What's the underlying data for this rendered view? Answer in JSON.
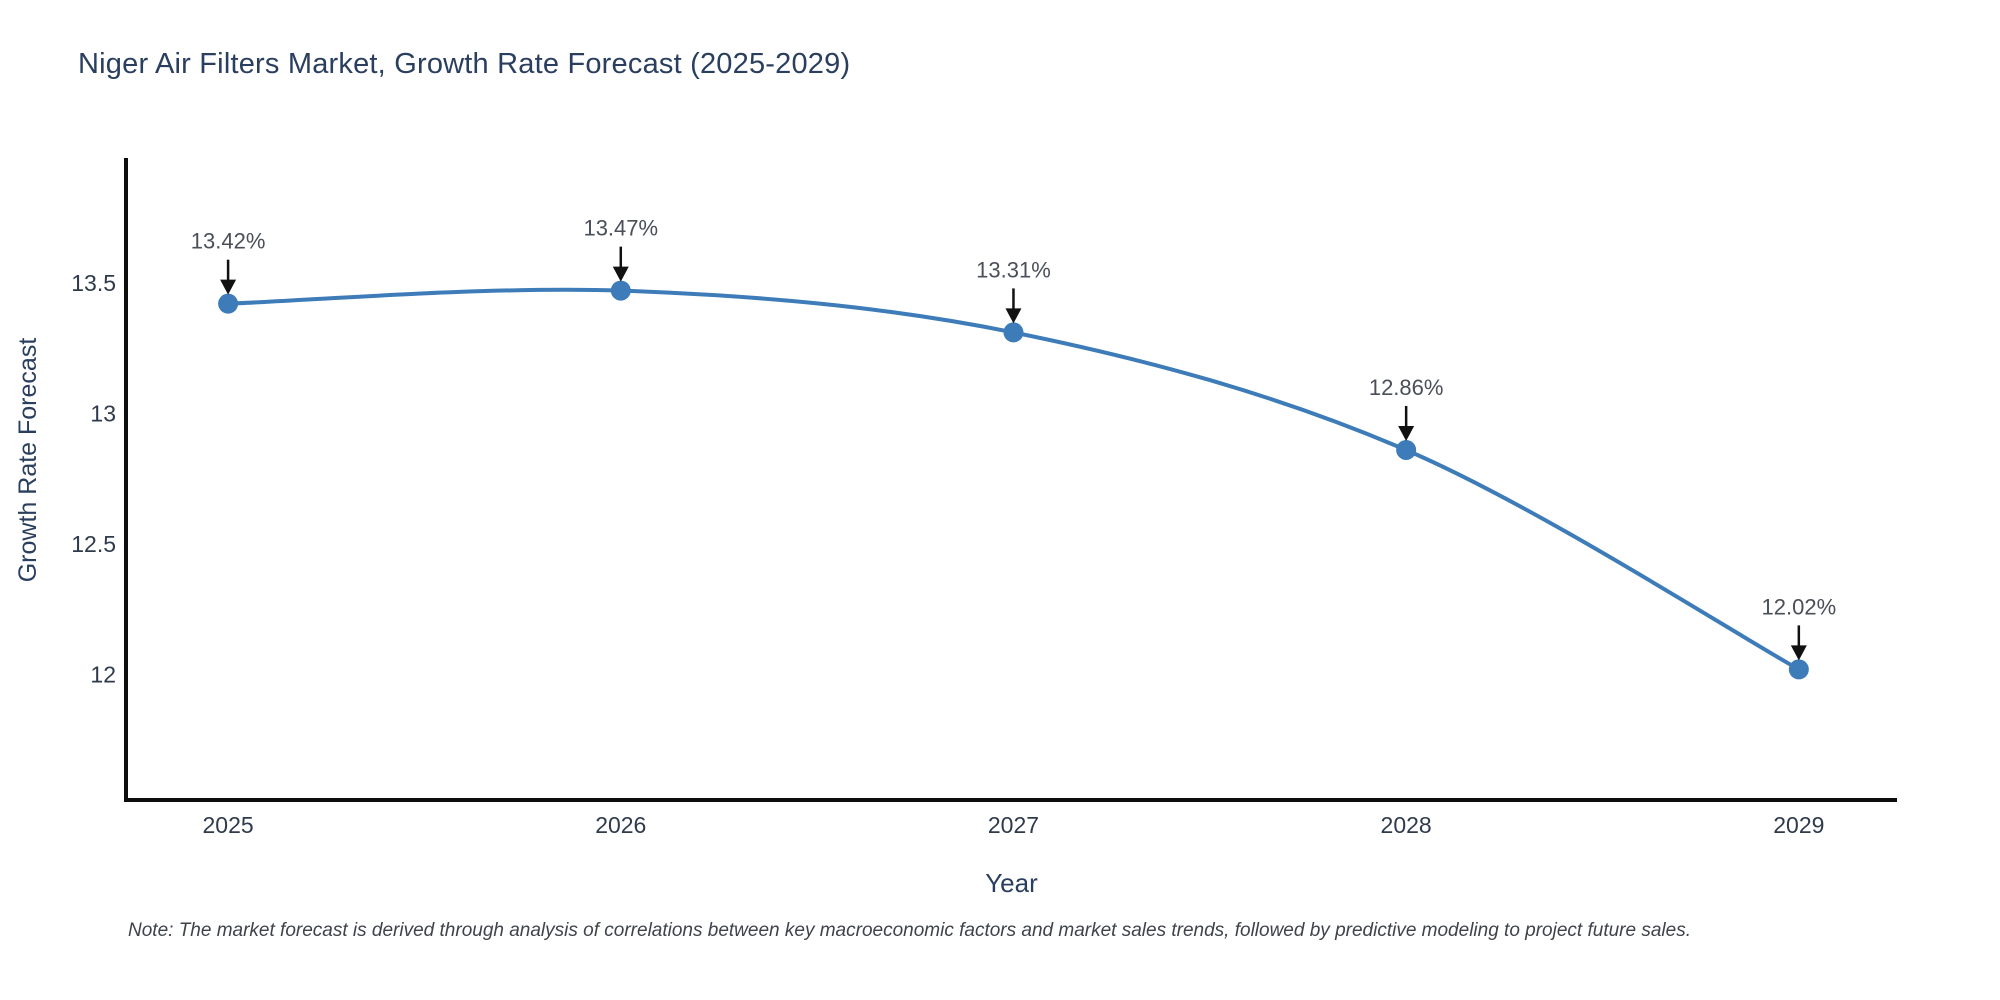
{
  "title": "Niger Air Filters Market, Growth Rate Forecast (2025-2029)",
  "note": "Note: The market forecast is derived through analysis of correlations between key macroeconomic factors and market sales trends, followed by predictive modeling to project future sales.",
  "chart_data": {
    "type": "line",
    "title": "Niger Air Filters Market, Growth Rate Forecast (2025-2029)",
    "xlabel": "Year",
    "ylabel": "Growth Rate Forecast",
    "x": [
      2025,
      2026,
      2027,
      2028,
      2029
    ],
    "values": [
      13.42,
      13.47,
      13.31,
      12.86,
      12.02
    ],
    "point_labels": [
      "13.42%",
      "13.47%",
      "13.31%",
      "12.86%",
      "12.02%"
    ],
    "x_tick_labels": [
      "2025",
      "2026",
      "2027",
      "2028",
      "2029"
    ],
    "y_ticks": [
      13.5,
      13.0,
      12.5,
      12.0
    ],
    "y_tick_labels": [
      "13.5",
      "13",
      "12.5",
      "12"
    ],
    "xlim": [
      2024.74,
      2029.25
    ],
    "ylim": [
      11.52,
      13.97
    ],
    "line_shape": "spline",
    "grid": false,
    "legend": "none",
    "annotations_have_arrows": true,
    "colors": {
      "line": "#3d7cb8",
      "marker": "#3d7cb8",
      "axis": "#0d0d0d",
      "title_text": "#2a3f5f",
      "tick_text": "#2f3b4c",
      "annotation_text": "#4a4f58",
      "arrow": "#111111",
      "note_text": "#3f434a",
      "background": "#ffffff"
    }
  }
}
